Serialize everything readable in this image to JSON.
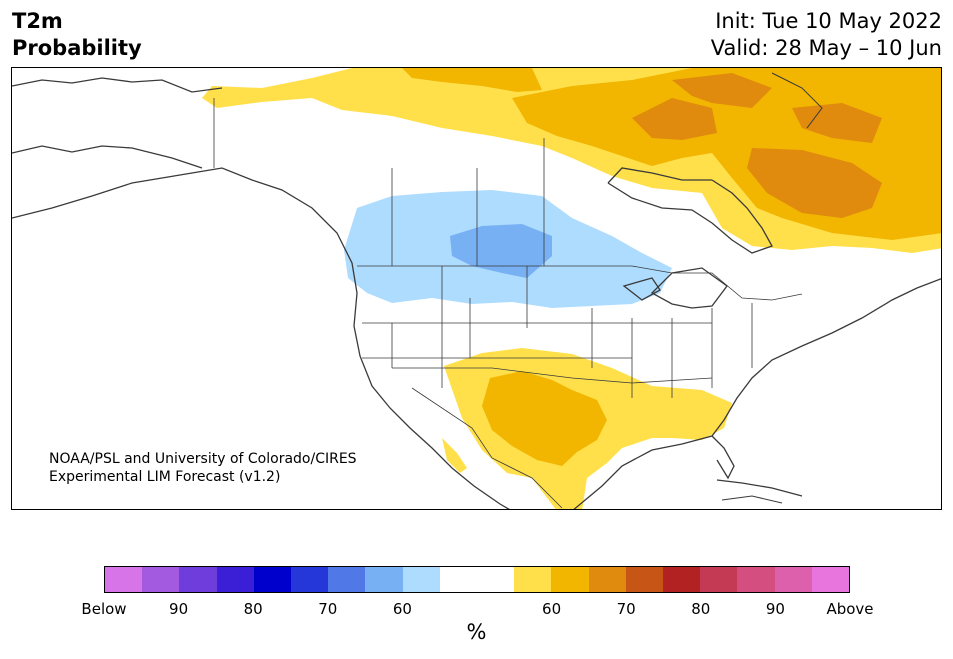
{
  "title": {
    "line1": "T2m",
    "line2": "Probability"
  },
  "dates": {
    "init": "Init: Tue 10 May 2022",
    "valid": "Valid: 28 May – 10 Jun"
  },
  "credit": {
    "line1": "NOAA/PSL and University of Colorado/CIRES",
    "line2": "Experimental LIM Forecast (v1.2)"
  },
  "colorbar": {
    "unit": "%",
    "colors": [
      "#d674e8",
      "#a35ae0",
      "#6f3ddb",
      "#3a1fd7",
      "#0000cc",
      "#2637d9",
      "#5078e6",
      "#77b0f3",
      "#aedcff",
      "#ffffff",
      "#ffffff",
      "#ffe04a",
      "#f2b600",
      "#e08a0e",
      "#c75516",
      "#b22222",
      "#c43a55",
      "#d44f80",
      "#dd60ad",
      "#e874dd"
    ],
    "ticks": [
      "Below",
      "90",
      "80",
      "70",
      "60",
      "60",
      "70",
      "80",
      "90",
      "Above"
    ]
  },
  "colors": {
    "below_60": "#aedcff",
    "below_70": "#77b0f3",
    "above_60": "#ffe04a",
    "above_70": "#f2b600",
    "above_80": "#e08a0e",
    "coast": "#3a3a3a"
  }
}
